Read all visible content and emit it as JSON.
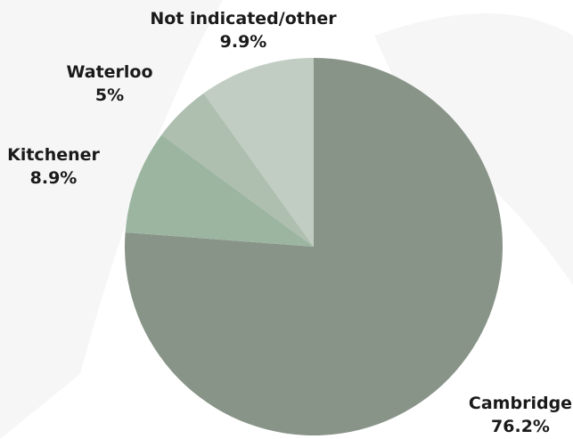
{
  "chart_data": {
    "type": "pie",
    "title": "",
    "slices": [
      {
        "label": "Cambridge",
        "value": 76.2,
        "display": "76.2%",
        "color": "#899489"
      },
      {
        "label": "Kitchener",
        "value": 8.9,
        "display": "8.9%",
        "color": "#9cb5a1"
      },
      {
        "label": "Waterloo",
        "value": 5.0,
        "display": "5%",
        "color": "#aebfb0"
      },
      {
        "label": "Not indicated/other",
        "value": 9.9,
        "display": "9.9%",
        "color": "#c1cdc2"
      }
    ],
    "start_angle": "12 o'clock",
    "direction": "clockwise"
  }
}
